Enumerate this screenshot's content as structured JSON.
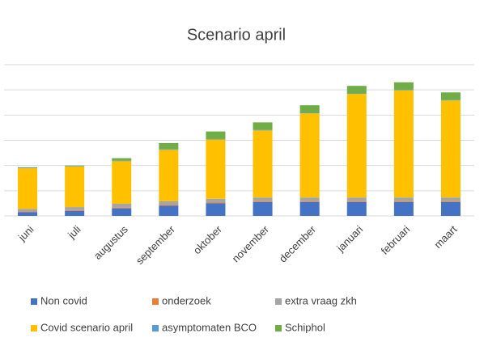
{
  "chart_data": {
    "type": "stacked_bar",
    "title": "Scenario april",
    "categories": [
      "juni",
      "juli",
      "augustus",
      "september",
      "oktober",
      "november",
      "december",
      "januari",
      "februari",
      "maart"
    ],
    "series": [
      {
        "name": "Non covid",
        "color": "#4472c4",
        "values": [
          0.15,
          0.2,
          0.3,
          0.4,
          0.5,
          0.55,
          0.55,
          0.55,
          0.55,
          0.55
        ]
      },
      {
        "name": "onderzoek",
        "color": "#ed7d31",
        "values": [
          0.03,
          0.03,
          0.03,
          0.03,
          0.03,
          0.03,
          0.03,
          0.03,
          0.03,
          0.03
        ]
      },
      {
        "name": "extra vraag zkh",
        "color": "#a5a5a5",
        "values": [
          0.1,
          0.12,
          0.15,
          0.15,
          0.15,
          0.15,
          0.15,
          0.15,
          0.15,
          0.15
        ]
      },
      {
        "name": "Covid scenario april",
        "color": "#ffc000",
        "values": [
          1.61,
          1.61,
          1.69,
          2.04,
          2.35,
          2.66,
          3.34,
          4.11,
          4.25,
          3.85
        ]
      },
      {
        "name": "asymptomaten BCO",
        "color": "#5b9bd5",
        "values": [
          0.02,
          0.02,
          0.02,
          0.02,
          0.02,
          0.02,
          0.02,
          0.02,
          0.02,
          0.02
        ]
      },
      {
        "name": "Schiphol",
        "color": "#70ad47",
        "values": [
          0.02,
          0.02,
          0.1,
          0.25,
          0.3,
          0.3,
          0.3,
          0.3,
          0.3,
          0.3
        ]
      }
    ],
    "ylim": [
      0,
      6
    ],
    "yticks": [
      0,
      1,
      2,
      3,
      4,
      5,
      6
    ],
    "grid": true,
    "legend": "bottom"
  }
}
